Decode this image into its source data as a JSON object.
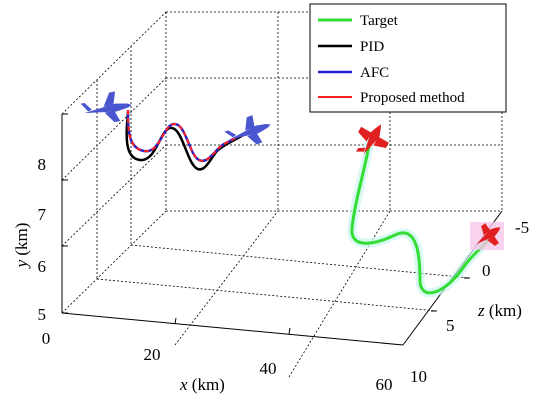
{
  "chart_data": {
    "type": "line3d",
    "xlabel_var": "x",
    "xlabel_unit": "(km)",
    "ylabel_var": "y",
    "ylabel_unit": "(km)",
    "zlabel_var": "z",
    "zlabel_unit": "(km)",
    "x_ticks": [
      "0",
      "20",
      "40",
      "60"
    ],
    "y_ticks": [
      "5",
      "6",
      "7",
      "8"
    ],
    "z_ticks": [
      "-5",
      "0",
      "5",
      "10"
    ],
    "xlim": [
      0,
      60
    ],
    "ylim": [
      5,
      8
    ],
    "zlim": [
      -5,
      10
    ],
    "grid": true,
    "legend_position": "top-right",
    "series": [
      {
        "name": "Target",
        "color": "#33dd33"
      },
      {
        "name": "PID",
        "color": "#000000"
      },
      {
        "name": "AFC",
        "color": "#2222cc"
      },
      {
        "name": "Proposed method",
        "color": "#ff2020"
      }
    ],
    "markers": [
      {
        "label": "aircraft-blue-start",
        "color": "#4a55d0"
      },
      {
        "label": "aircraft-blue-end",
        "color": "#4a55d0"
      },
      {
        "label": "aircraft-red-target-start",
        "color": "#e02020"
      },
      {
        "label": "aircraft-red-target-end",
        "color": "#e02020"
      }
    ]
  }
}
